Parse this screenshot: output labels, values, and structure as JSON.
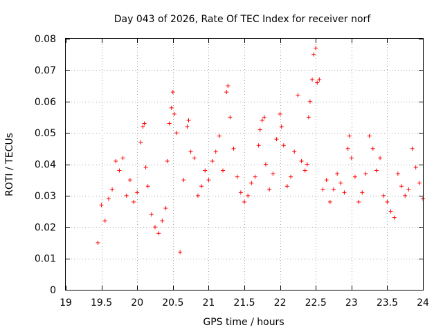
{
  "chart_data": {
    "type": "scatter",
    "title": "Day 043 of 2026, Rate Of TEC Index for receiver norf",
    "xlabel": "GPS time / hours",
    "ylabel": "ROTI / TECUs",
    "xlim": [
      19,
      24
    ],
    "ylim": [
      0,
      0.08
    ],
    "x_ticks": [
      19,
      19.5,
      20,
      20.5,
      21,
      21.5,
      22,
      22.5,
      23,
      23.5,
      24
    ],
    "x_tick_labels": [
      "19",
      "19.5",
      "20",
      "20.5",
      "21",
      "21.5",
      "22",
      "22.5",
      "23",
      "23.5",
      "24"
    ],
    "y_ticks": [
      0,
      0.01,
      0.02,
      0.03,
      0.04,
      0.05,
      0.06,
      0.07,
      0.08
    ],
    "y_tick_labels": [
      "0",
      "0.01",
      "0.02",
      "0.03",
      "0.04",
      "0.05",
      "0.06",
      "0.07",
      "0.08"
    ],
    "grid": true,
    "marker": "plus",
    "color": "#ff0000",
    "series": [
      {
        "name": "ROTI",
        "x": [
          19.45,
          19.5,
          19.55,
          19.6,
          19.65,
          19.7,
          19.75,
          19.8,
          19.85,
          19.9,
          19.95,
          20.0,
          20.05,
          20.08,
          20.1,
          20.12,
          20.15,
          20.2,
          20.25,
          20.3,
          20.35,
          20.4,
          20.42,
          20.45,
          20.48,
          20.5,
          20.52,
          20.55,
          20.6,
          20.65,
          20.7,
          20.72,
          20.75,
          20.8,
          20.85,
          20.9,
          20.95,
          21.0,
          21.05,
          21.1,
          21.15,
          21.2,
          21.25,
          21.27,
          21.3,
          21.35,
          21.4,
          21.45,
          21.5,
          21.55,
          21.6,
          21.65,
          21.7,
          21.72,
          21.75,
          21.78,
          21.8,
          21.85,
          21.9,
          21.95,
          22.0,
          22.02,
          22.05,
          22.1,
          22.15,
          22.2,
          22.25,
          22.3,
          22.35,
          22.38,
          22.4,
          22.42,
          22.45,
          22.47,
          22.5,
          22.52,
          22.55,
          22.6,
          22.65,
          22.7,
          22.75,
          22.8,
          22.85,
          22.9,
          22.95,
          22.97,
          23.0,
          23.05,
          23.1,
          23.15,
          23.2,
          23.25,
          23.3,
          23.35,
          23.4,
          23.45,
          23.5,
          23.55,
          23.6,
          23.65,
          23.7,
          23.75,
          23.8,
          23.85,
          23.9,
          23.95,
          24.0
        ],
        "y": [
          0.015,
          0.027,
          0.022,
          0.029,
          0.032,
          0.041,
          0.038,
          0.042,
          0.03,
          0.035,
          0.028,
          0.031,
          0.047,
          0.052,
          0.053,
          0.039,
          0.033,
          0.024,
          0.02,
          0.018,
          0.022,
          0.026,
          0.041,
          0.053,
          0.058,
          0.063,
          0.056,
          0.05,
          0.012,
          0.035,
          0.052,
          0.054,
          0.044,
          0.042,
          0.03,
          0.033,
          0.038,
          0.035,
          0.041,
          0.044,
          0.049,
          0.038,
          0.063,
          0.065,
          0.055,
          0.045,
          0.036,
          0.031,
          0.028,
          0.03,
          0.034,
          0.036,
          0.046,
          0.051,
          0.054,
          0.055,
          0.04,
          0.032,
          0.037,
          0.048,
          0.056,
          0.052,
          0.046,
          0.033,
          0.036,
          0.044,
          0.062,
          0.041,
          0.038,
          0.04,
          0.055,
          0.06,
          0.067,
          0.075,
          0.077,
          0.066,
          0.067,
          0.032,
          0.035,
          0.028,
          0.032,
          0.037,
          0.034,
          0.031,
          0.045,
          0.049,
          0.042,
          0.036,
          0.028,
          0.031,
          0.037,
          0.049,
          0.045,
          0.038,
          0.042,
          0.03,
          0.028,
          0.025,
          0.023,
          0.037,
          0.033,
          0.03,
          0.032,
          0.045,
          0.039,
          0.034,
          0.029
        ]
      }
    ]
  }
}
